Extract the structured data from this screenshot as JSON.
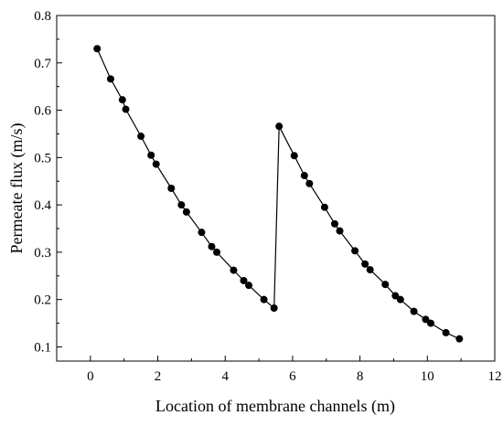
{
  "chart_data": {
    "type": "line",
    "xlabel": "Location of membrane channels (m)",
    "ylabel": "Permeate flux (m/s)",
    "xlim": [
      -1,
      12
    ],
    "ylim": [
      0.07,
      0.8
    ],
    "xticks": [
      0,
      2,
      4,
      6,
      8,
      10,
      12
    ],
    "yticks": [
      0.1,
      0.2,
      0.3,
      0.4,
      0.5,
      0.6,
      0.7,
      0.8
    ],
    "grid": false,
    "legend": "none",
    "colors": {
      "line": "#000000",
      "marker": "#000000"
    },
    "series": [
      {
        "marker": "filled-circle",
        "x": [
          0.2,
          0.6,
          0.95,
          1.05,
          1.5,
          1.8,
          1.95,
          2.4,
          2.7,
          2.85,
          3.3,
          3.6,
          3.75,
          4.25,
          4.55,
          4.7,
          5.15,
          5.45,
          5.6,
          6.05,
          6.35,
          6.5,
          6.95,
          7.25,
          7.4,
          7.85,
          8.15,
          8.3,
          8.75,
          9.05,
          9.2,
          9.6,
          9.95,
          10.1,
          10.55,
          10.95
        ],
        "y": [
          0.73,
          0.666,
          0.622,
          0.602,
          0.545,
          0.505,
          0.486,
          0.435,
          0.4,
          0.385,
          0.342,
          0.312,
          0.3,
          0.262,
          0.24,
          0.23,
          0.2,
          0.182,
          0.566,
          0.504,
          0.462,
          0.445,
          0.395,
          0.36,
          0.345,
          0.303,
          0.275,
          0.263,
          0.232,
          0.208,
          0.2,
          0.175,
          0.158,
          0.15,
          0.13,
          0.117
        ]
      }
    ]
  }
}
